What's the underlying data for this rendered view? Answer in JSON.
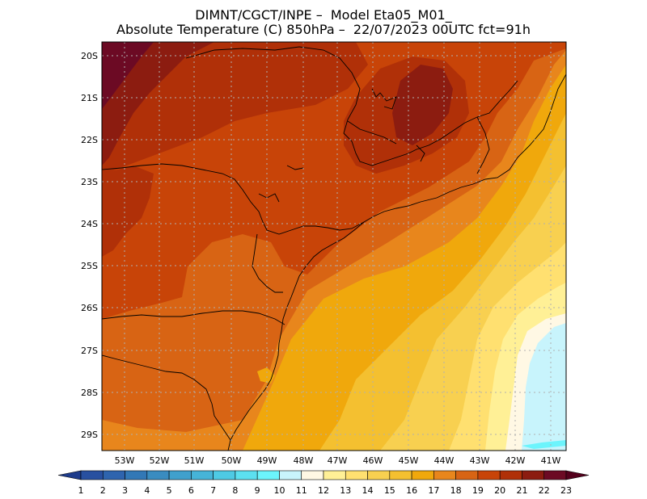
{
  "title_line1": "DIMNT/CGCT/INPE –  Model Eta05_M01_",
  "title_line2": "Absolute Temperature (C) 850hPa –  22/07/2023 00UTC fct=91h",
  "lat_labels": [
    "20S",
    "21S",
    "22S",
    "23S",
    "24S",
    "25S",
    "26S",
    "27S",
    "28S",
    "29S"
  ],
  "lon_labels": [
    "53W",
    "52W",
    "51W",
    "50W",
    "49W",
    "48W",
    "47W",
    "46W",
    "45W",
    "44W",
    "43W",
    "42W",
    "41W"
  ],
  "colorbar": {
    "labels": [
      "1",
      "2",
      "3",
      "4",
      "5",
      "6",
      "7",
      "8",
      "9",
      "10",
      "11",
      "12",
      "13",
      "14",
      "15",
      "16",
      "17",
      "18",
      "19",
      "20",
      "21",
      "22",
      "23"
    ],
    "colors": [
      "#1e3c8c",
      "#2850a0",
      "#2e64ae",
      "#3278b6",
      "#3a8cc0",
      "#40a0cc",
      "#46b4d8",
      "#4ecae4",
      "#5ce0f0",
      "#6cf4fc",
      "#c8f4fc",
      "#fff8e4",
      "#fff096",
      "#ffe070",
      "#f8d050",
      "#f4c030",
      "#f0a80c",
      "#e8861c",
      "#d86414",
      "#c84408",
      "#b03008",
      "#8c1c10",
      "#6c0a24",
      "#54001c"
    ]
  },
  "colors": {
    "c18": "#e8861c",
    "c19": "#d86414",
    "c20": "#c84408",
    "c21": "#b03008",
    "c22": "#8c1c10",
    "c23": "#6c0a24",
    "c17": "#f0a80c",
    "c16": "#f4c030",
    "c15": "#f8d050",
    "c14": "#ffe070",
    "c13": "#fff096",
    "c12": "#fff8e4",
    "c11": "#c8f4fc",
    "c10": "#6cf4fc"
  }
}
